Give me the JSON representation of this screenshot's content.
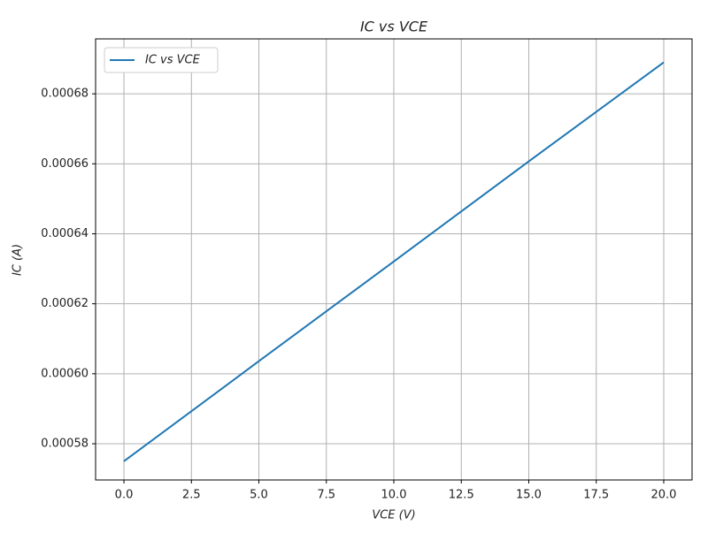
{
  "chart_data": {
    "type": "line",
    "title": "IC vs VCE",
    "x_label": "VCE (V)",
    "y_label": "IC (A)",
    "x": [
      0,
      5,
      10,
      15,
      20
    ],
    "series": [
      {
        "name": "IC vs VCE",
        "color": "#1f77b4",
        "values": [
          0.000575,
          0.0006036,
          0.0006321,
          0.0006607,
          0.000689
        ]
      }
    ],
    "xlim": [
      -1.05,
      21.05
    ],
    "xticks": [
      {
        "value": 0,
        "label": "0.0"
      },
      2.5,
      {
        "value": 5,
        "label": "5.0"
      },
      7.5,
      {
        "value": 10,
        "label": "10.0"
      },
      12.5,
      {
        "value": 15,
        "label": "15.0"
      },
      17.5,
      {
        "value": 20,
        "label": "20.0"
      }
    ],
    "ylim": [
      0.00056965,
      0.0006957
    ],
    "yticks": [
      0.00058,
      {
        "value": 0.0006,
        "label": "0.00060"
      },
      0.00062,
      0.00064,
      0.00066,
      0.00068
    ],
    "grid": true,
    "legend": "upper-left"
  }
}
